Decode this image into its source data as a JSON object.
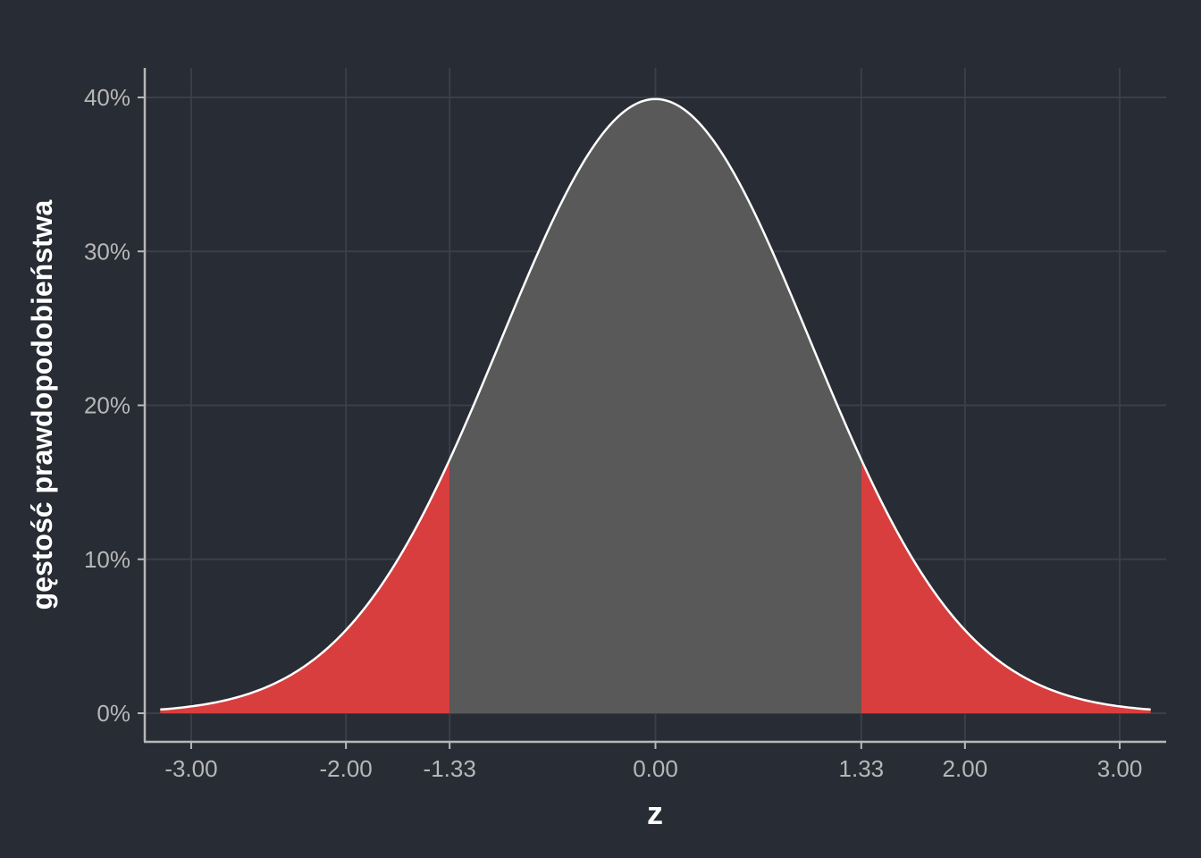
{
  "chart_data": {
    "type": "area",
    "distribution": "standard-normal-density",
    "xlabel": "z",
    "ylabel": "gęstość prawdopodobieństwa",
    "xlim": [
      -3.3,
      3.3
    ],
    "ylim": [
      0,
      0.4
    ],
    "x_ticks": [
      -3.0,
      -2.0,
      -1.33,
      0.0,
      1.33,
      2.0,
      3.0
    ],
    "x_tick_labels": [
      "-3.00",
      "-2.00",
      "-1.33",
      "0.00",
      "1.33",
      "2.00",
      "3.00"
    ],
    "y_ticks": [
      0,
      0.1,
      0.2,
      0.3,
      0.4
    ],
    "y_tick_labels": [
      "0%",
      "10%",
      "20%",
      "30%",
      "40%"
    ],
    "regions": [
      {
        "from": -3.2,
        "to": -1.33,
        "color": "#d93e3e"
      },
      {
        "from": -1.33,
        "to": 1.33,
        "color": "#595959"
      },
      {
        "from": 1.33,
        "to": 3.2,
        "color": "#d93e3e"
      }
    ],
    "curve_color": "#ffffff",
    "grid": true,
    "legend": "none"
  },
  "colors": {
    "background": "#282c34",
    "grid": "#3a3f48",
    "axis": "#b7b7b7",
    "tail": "#d93e3e",
    "center": "#595959"
  }
}
